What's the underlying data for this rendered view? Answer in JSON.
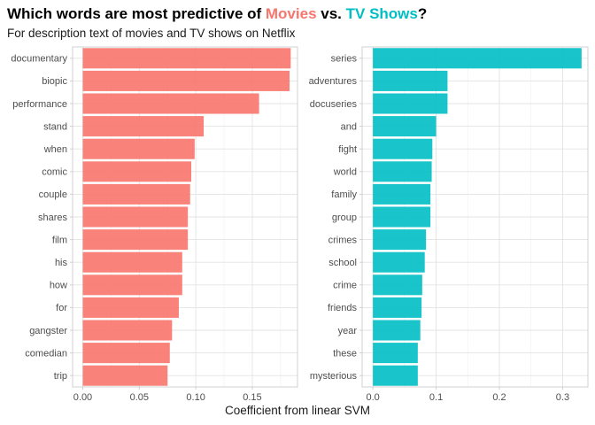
{
  "title": {
    "prefix": "Which words are most predictive of ",
    "movies": "Movies",
    "middle": " vs. ",
    "tv": "TV Shows",
    "suffix": "?"
  },
  "subtitle": "For description text of movies and TV shows on Netflix",
  "colors": {
    "movies": "#F8766D",
    "tv": "#00BFC4"
  },
  "chart_data": [
    {
      "type": "bar",
      "orientation": "horizontal",
      "categories": [
        "documentary",
        "biopic",
        "performance",
        "stand",
        "when",
        "comic",
        "couple",
        "shares",
        "film",
        "his",
        "how",
        "for",
        "gangster",
        "comedian",
        "trip"
      ],
      "values": [
        0.184,
        0.183,
        0.156,
        0.107,
        0.099,
        0.096,
        0.095,
        0.093,
        0.093,
        0.088,
        0.088,
        0.085,
        0.079,
        0.077,
        0.075
      ],
      "color": "#F8766D",
      "xlim": [
        -0.009,
        0.19
      ],
      "xticks": [
        0.0,
        0.05,
        0.1,
        0.15
      ],
      "xtick_labels": [
        "0.00",
        "0.05",
        "0.10",
        "0.15"
      ],
      "grid": true
    },
    {
      "type": "bar",
      "orientation": "horizontal",
      "categories": [
        "series",
        "adventures",
        "docuseries",
        "and",
        "fight",
        "world",
        "family",
        "group",
        "crimes",
        "school",
        "crime",
        "friends",
        "year",
        "these",
        "mysterious"
      ],
      "values": [
        0.33,
        0.118,
        0.118,
        0.1,
        0.094,
        0.093,
        0.091,
        0.091,
        0.084,
        0.082,
        0.078,
        0.077,
        0.075,
        0.071,
        0.071
      ],
      "color": "#00BFC4",
      "xlim": [
        -0.017,
        0.34
      ],
      "xticks": [
        0.0,
        0.1,
        0.2,
        0.3
      ],
      "xtick_labels": [
        "0.0",
        "0.1",
        "0.2",
        "0.3"
      ],
      "grid": true
    }
  ],
  "xlabel": "Coefficient from linear SVM"
}
